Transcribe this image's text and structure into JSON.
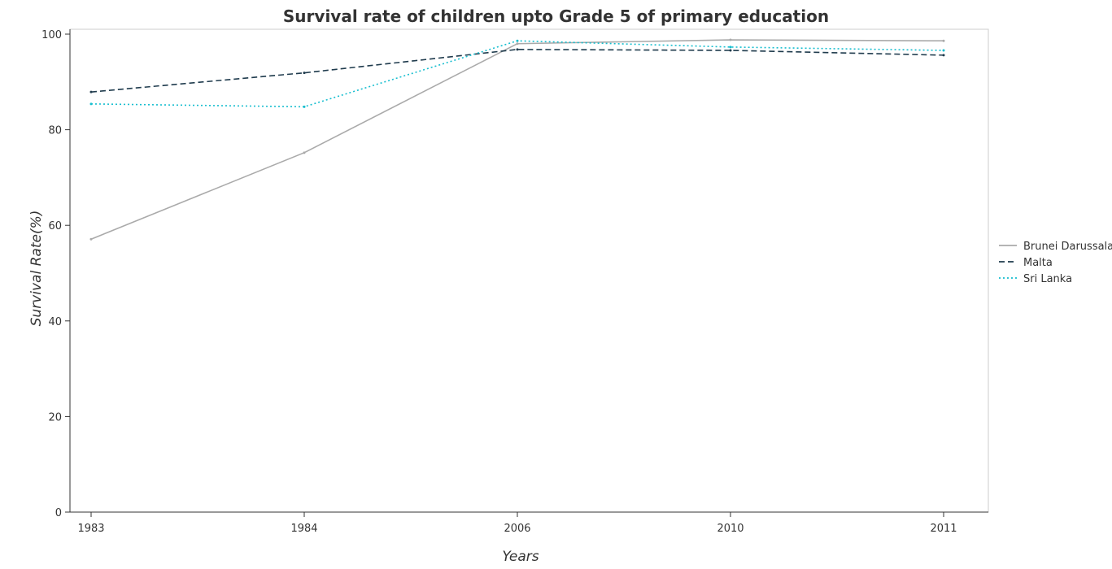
{
  "chart_data": {
    "type": "line",
    "title": "Survival rate of children upto Grade 5 of primary education",
    "xlabel": "Years",
    "ylabel": "Survival Rate(%)",
    "categories": [
      "1983",
      "1984",
      "2006",
      "2010",
      "2011"
    ],
    "ylim": [
      0,
      100
    ],
    "yticks": [
      "0",
      "20",
      "40",
      "60",
      "80",
      "100"
    ],
    "legend_position": "right",
    "grid": false,
    "series": [
      {
        "name": "Brunei Darussalam",
        "color": "#aaaaaa",
        "dash": "solid",
        "values": [
          57.1,
          75.2,
          98.0,
          98.8,
          98.6
        ]
      },
      {
        "name": "Malta",
        "color": "#1f3b4d",
        "dash": "dashed",
        "values": [
          87.9,
          91.9,
          96.8,
          96.6,
          95.6
        ]
      },
      {
        "name": "Sri Lanka",
        "color": "#17becf",
        "dash": "dotted",
        "values": [
          85.4,
          84.8,
          98.6,
          97.3,
          96.6
        ]
      }
    ]
  }
}
